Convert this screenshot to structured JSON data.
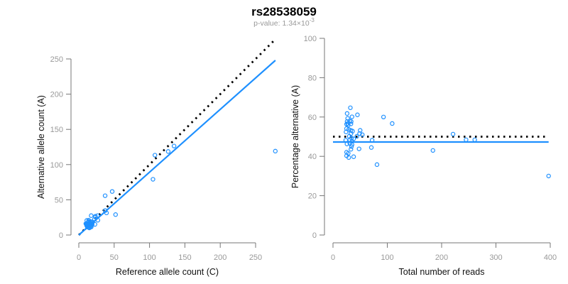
{
  "title": "rs28538059",
  "subtitle": {
    "prefix": "p-value: 1.34×10",
    "exponent": "-3"
  },
  "colors": {
    "points": "#1e90ff",
    "fit": "#1e90ff",
    "expected": "#000000",
    "axis": "#777777",
    "tick": "#999999"
  },
  "chart_data": [
    {
      "type": "scatter",
      "name": "allele-counts",
      "xlabel": "Reference allele count (C)",
      "ylabel": "Alternative allele count (A)",
      "xlim": [
        0,
        250
      ],
      "ylim": [
        0,
        250
      ],
      "xticks": [
        0,
        50,
        100,
        150,
        200,
        250
      ],
      "yticks": [
        0,
        50,
        100,
        150,
        200,
        250
      ],
      "expected_line": {
        "style": "dotted",
        "slope": 1,
        "x_range": [
          0,
          277
        ]
      },
      "fit_line": {
        "style": "solid",
        "slope": 0.892,
        "x_range": [
          0,
          278
        ]
      },
      "points_derived_from": "reads panel (C = total*(1-pct/100), A = total*pct/100)"
    },
    {
      "type": "scatter",
      "name": "percentage-vs-reads",
      "xlabel": "Total number of reads",
      "ylabel": "Percentage alternative (A)",
      "xlim": [
        0,
        400
      ],
      "ylim": [
        0,
        100
      ],
      "xticks": [
        0,
        100,
        200,
        300,
        400
      ],
      "yticks": [
        0,
        20,
        40,
        60,
        80,
        100
      ],
      "expected_line": {
        "style": "dotted",
        "y": 50,
        "x_range": [
          0,
          391
        ]
      },
      "fit_line": {
        "style": "solid",
        "y": 47.3,
        "x_range": [
          0,
          397
        ]
      },
      "points": [
        [
          24,
          52.4
        ],
        [
          25,
          56.3
        ],
        [
          25,
          54.1
        ],
        [
          26,
          61.8
        ],
        [
          26,
          57.7
        ],
        [
          27,
          59.3
        ],
        [
          28,
          55.9
        ],
        [
          29,
          53.7
        ],
        [
          27,
          56.7
        ],
        [
          23.5,
          48.2
        ],
        [
          25.7,
          46.3
        ],
        [
          25,
          42.1
        ],
        [
          25,
          40.3
        ],
        [
          28,
          41.5
        ],
        [
          29,
          39.4
        ],
        [
          30,
          50.2
        ],
        [
          31,
          48.4
        ],
        [
          31,
          46.6
        ],
        [
          32,
          64.7
        ],
        [
          31,
          58
        ],
        [
          33,
          56.5
        ],
        [
          33,
          53.2
        ],
        [
          33,
          51.6
        ],
        [
          33.5,
          57.7
        ],
        [
          35,
          60.1
        ],
        [
          36,
          52.8
        ],
        [
          34,
          49.3
        ],
        [
          35,
          47.7
        ],
        [
          35,
          46
        ],
        [
          34,
          45
        ],
        [
          33,
          43.6
        ],
        [
          38,
          39.8
        ],
        [
          38,
          48.9
        ],
        [
          45,
          61.1
        ],
        [
          50,
          53.2
        ],
        [
          49,
          51.6
        ],
        [
          54,
          51
        ],
        [
          44,
          50.2
        ],
        [
          48,
          43.8
        ],
        [
          70.6,
          44.5
        ],
        [
          72,
          48.2
        ],
        [
          81,
          35.8
        ],
        [
          93,
          60
        ],
        [
          109,
          56.7
        ],
        [
          184,
          43
        ],
        [
          221,
          51.3
        ],
        [
          245,
          48.4
        ],
        [
          261,
          48.4
        ],
        [
          397,
          30
        ]
      ]
    }
  ]
}
